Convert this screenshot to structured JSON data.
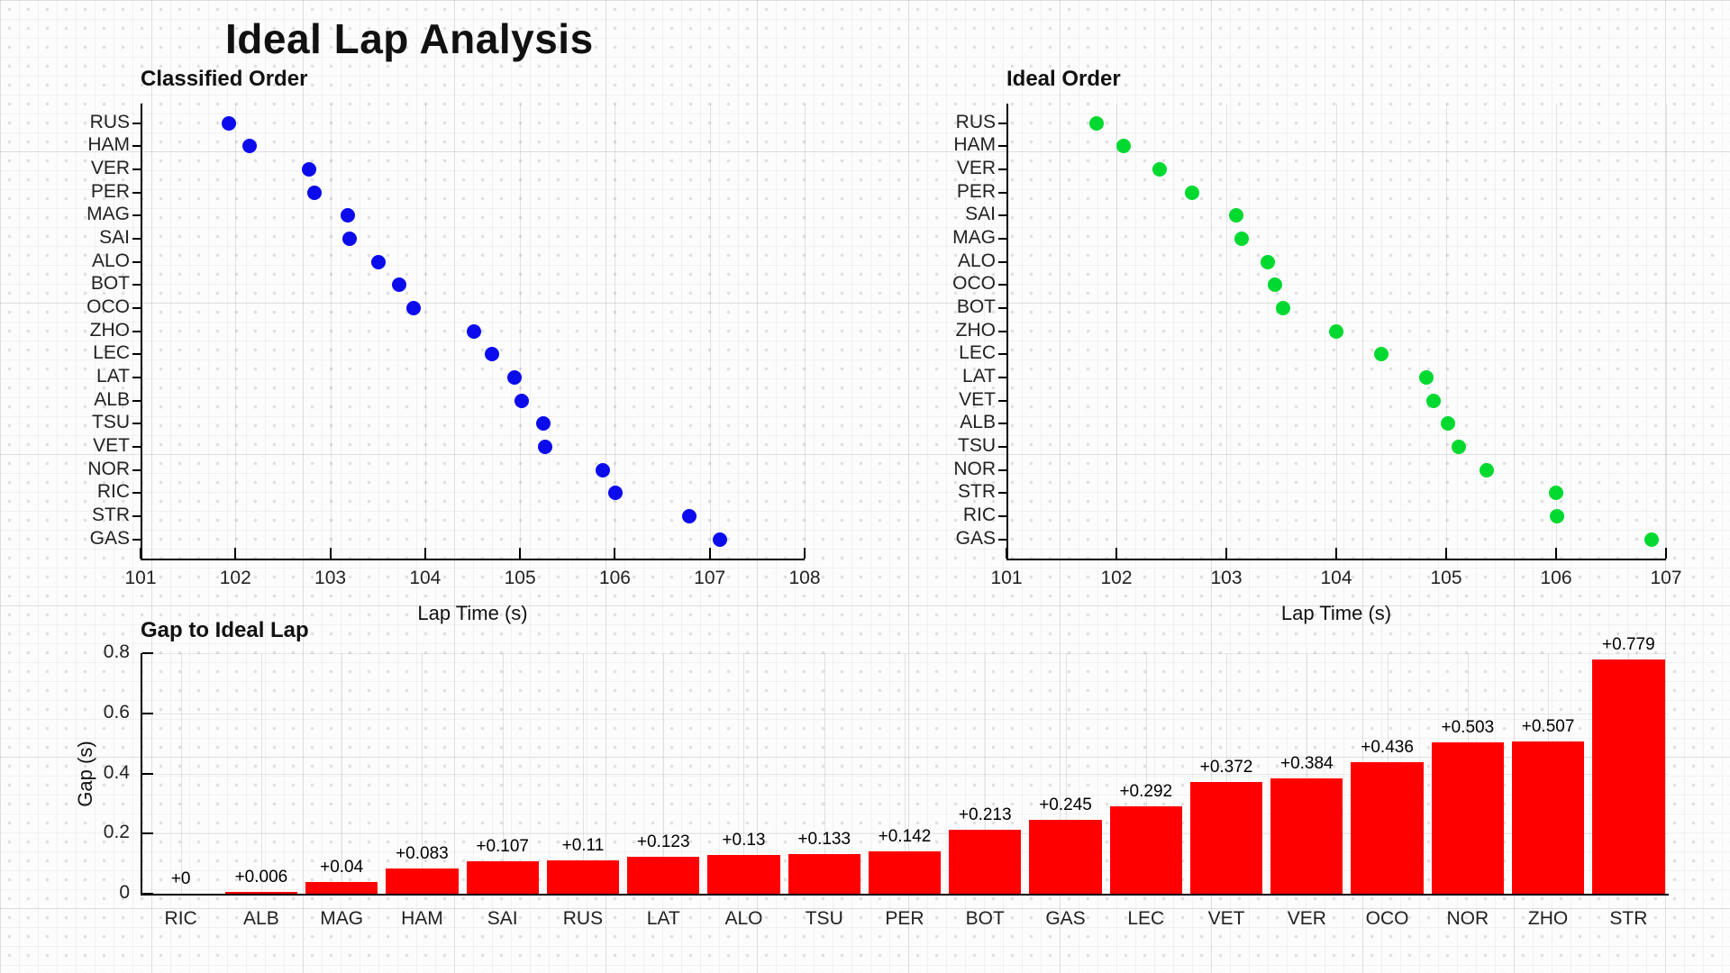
{
  "title": "Ideal Lap Analysis",
  "colors": {
    "classified_points": "#0b0bec",
    "ideal_points": "#00d930",
    "gap_bars": "#ff0000",
    "axis": "#000000"
  },
  "chart_data": [
    {
      "type": "scatter",
      "title": "Classified Order",
      "xlabel": "Lap Time (s)",
      "xlim": [
        101,
        108
      ],
      "xticks": [
        101,
        102,
        103,
        104,
        105,
        106,
        107,
        108
      ],
      "grid": "vertical-major",
      "point_color": "#0b0bec",
      "categories": [
        "RUS",
        "HAM",
        "VER",
        "PER",
        "MAG",
        "SAI",
        "ALO",
        "BOT",
        "OCO",
        "ZHO",
        "LEC",
        "LAT",
        "ALB",
        "TSU",
        "VET",
        "NOR",
        "RIC",
        "STR",
        "GAS"
      ],
      "values": [
        101.93,
        102.15,
        102.78,
        102.83,
        103.18,
        103.2,
        103.51,
        103.73,
        103.88,
        104.51,
        104.7,
        104.94,
        105.02,
        105.25,
        105.26,
        105.87,
        106.01,
        106.78,
        107.11
      ]
    },
    {
      "type": "scatter",
      "title": "Ideal Order",
      "xlabel": "Lap Time (s)",
      "xlim": [
        101,
        107
      ],
      "xticks": [
        101,
        102,
        103,
        104,
        105,
        106,
        107
      ],
      "grid": "vertical-major",
      "point_color": "#00d930",
      "categories": [
        "RUS",
        "HAM",
        "VER",
        "PER",
        "SAI",
        "MAG",
        "ALO",
        "OCO",
        "BOT",
        "ZHO",
        "LEC",
        "LAT",
        "VET",
        "ALB",
        "TSU",
        "NOR",
        "STR",
        "RIC",
        "GAS"
      ],
      "values": [
        101.82,
        102.067,
        102.396,
        102.688,
        103.093,
        103.14,
        103.38,
        103.444,
        103.517,
        104.003,
        104.408,
        104.817,
        104.888,
        105.014,
        105.117,
        105.367,
        106.001,
        106.01,
        106.865
      ]
    },
    {
      "type": "bar",
      "title": "Gap to Ideal Lap",
      "ylabel": "Gap (s)",
      "ylim": [
        0,
        0.8
      ],
      "yticks": [
        0,
        0.2,
        0.4,
        0.6,
        0.8
      ],
      "grid": "both",
      "bar_color": "#ff0000",
      "categories": [
        "RIC",
        "ALB",
        "MAG",
        "HAM",
        "SAI",
        "RUS",
        "LAT",
        "ALO",
        "TSU",
        "PER",
        "BOT",
        "GAS",
        "LEC",
        "VET",
        "VER",
        "OCO",
        "NOR",
        "ZHO",
        "STR"
      ],
      "values": [
        0,
        0.006,
        0.04,
        0.083,
        0.107,
        0.11,
        0.123,
        0.13,
        0.133,
        0.142,
        0.213,
        0.245,
        0.292,
        0.372,
        0.384,
        0.436,
        0.503,
        0.507,
        0.779
      ],
      "labels": [
        "+0",
        "+0.006",
        "+0.04",
        "+0.083",
        "+0.107",
        "+0.11",
        "+0.123",
        "+0.13",
        "+0.133",
        "+0.142",
        "+0.213",
        "+0.245",
        "+0.292",
        "+0.372",
        "+0.384",
        "+0.436",
        "+0.503",
        "+0.507",
        "+0.779"
      ]
    }
  ]
}
